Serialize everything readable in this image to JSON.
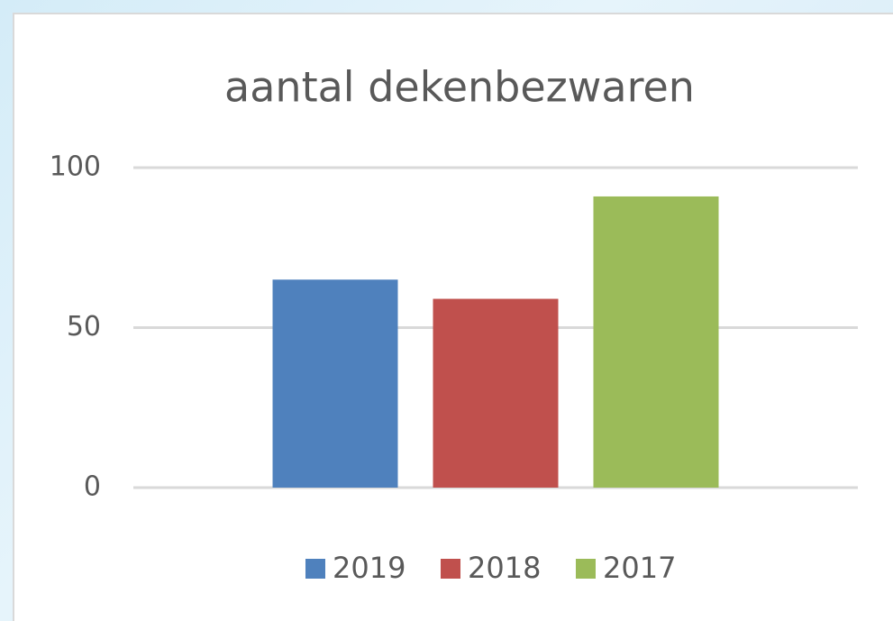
{
  "chart_data": {
    "type": "bar",
    "title": "aantal dekenbezwaren",
    "categories": [
      null
    ],
    "series": [
      {
        "name": "2019",
        "color": "#4f81bd",
        "values": [
          65
        ]
      },
      {
        "name": "2018",
        "color": "#c0504d",
        "values": [
          59
        ]
      },
      {
        "name": "2017",
        "color": "#9bbb59",
        "values": [
          91
        ]
      }
    ],
    "ylim": [
      0,
      100
    ],
    "yticks": [
      0,
      50,
      100
    ],
    "grid": true,
    "legend": "bottom"
  }
}
